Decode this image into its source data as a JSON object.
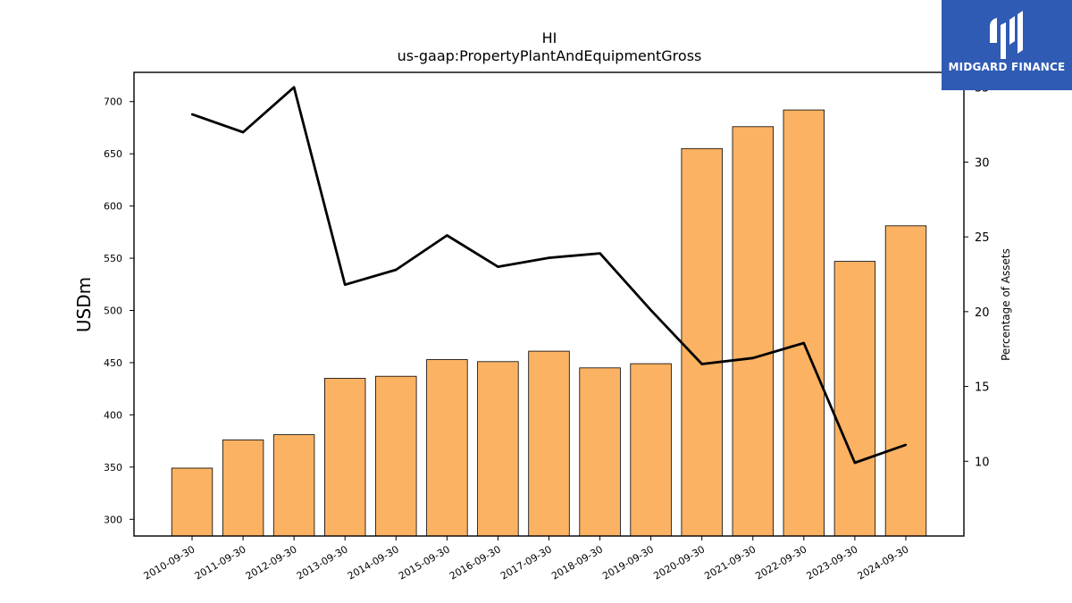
{
  "chart_data": {
    "type": "bar",
    "title": "HI",
    "subtitle": "us-gaap:PropertyPlantAndEquipmentGross",
    "ylabel": "USDm",
    "y2label": "Percentage of Assets",
    "categories": [
      "2010-09-30",
      "2011-09-30",
      "2012-09-30",
      "2013-09-30",
      "2014-09-30",
      "2015-09-30",
      "2016-09-30",
      "2017-09-30",
      "2018-09-30",
      "2019-09-30",
      "2020-09-30",
      "2021-09-30",
      "2022-09-30",
      "2023-09-30",
      "2024-09-30"
    ],
    "series": [
      {
        "type": "bar",
        "axis": "left",
        "values": [
          349,
          376,
          381,
          435,
          437,
          453,
          451,
          461,
          445,
          449,
          655,
          676,
          692,
          547,
          581
        ],
        "color": "#fbb263"
      },
      {
        "type": "line",
        "axis": "right",
        "values": [
          33.2,
          32.0,
          35.0,
          21.8,
          22.8,
          25.1,
          23.0,
          23.6,
          23.9,
          20.1,
          16.5,
          16.9,
          17.9,
          9.9,
          11.1
        ],
        "color": "#000000"
      }
    ],
    "ylim": [
      284,
      728
    ],
    "yticks": [
      300,
      350,
      400,
      450,
      500,
      550,
      600,
      650,
      700
    ],
    "y2lim": [
      5.0,
      36.0
    ],
    "y2ticks": [
      10,
      15,
      20,
      25,
      30,
      35
    ],
    "grid": false
  },
  "logo": {
    "text": "MIDGARD FINANCE",
    "icon": "midgard-logo-icon"
  }
}
